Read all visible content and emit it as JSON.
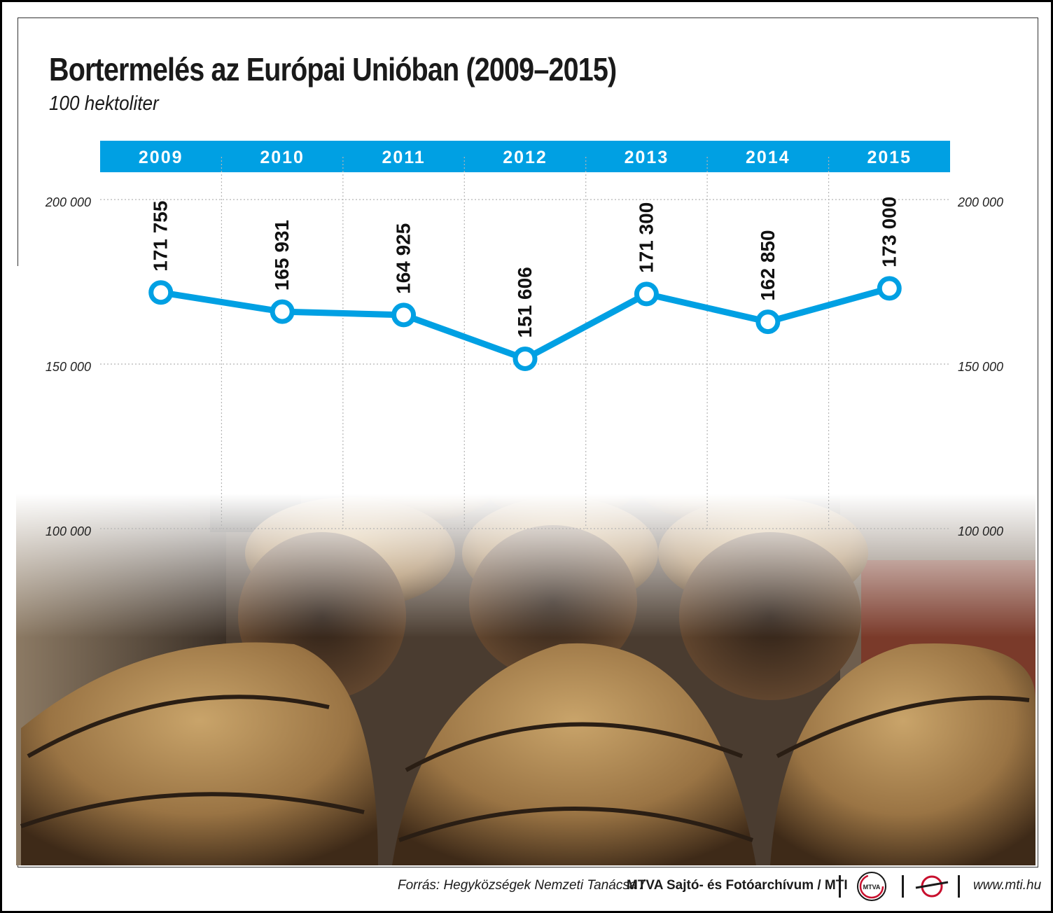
{
  "title": "Bortermelés az Európai Unióban (2009–2015)",
  "subtitle": "100 hektoliter",
  "colors": {
    "accent": "#00a0e3",
    "background_photo": "wine cellar with oak barrels"
  },
  "chart_data": {
    "type": "line",
    "title": "Bortermelés az Európai Unióban (2009–2015)",
    "unit": "100 hektoliter",
    "categories": [
      "2009",
      "2010",
      "2011",
      "2012",
      "2013",
      "2014",
      "2015"
    ],
    "values": [
      171755,
      165931,
      164925,
      151606,
      171300,
      162850,
      173000
    ],
    "value_labels": [
      "171 755",
      "165 931",
      "164 925",
      "151 606",
      "171 300",
      "162 850",
      "173 000"
    ],
    "y_ticks": [
      200000,
      150000,
      100000
    ],
    "y_tick_labels": [
      "200 000",
      "150 000",
      "100 000"
    ],
    "ylim": [
      100000,
      200000
    ],
    "grid": true,
    "axis_position": "both sides"
  },
  "footer": {
    "source": "Forrás: Hegyközségek Nemzeti Tanácsa /",
    "archive": "MTVA Sajtó- és Fotóarchívum / MTI",
    "logo1_text": "MTVA",
    "website": "www.mti.hu"
  }
}
